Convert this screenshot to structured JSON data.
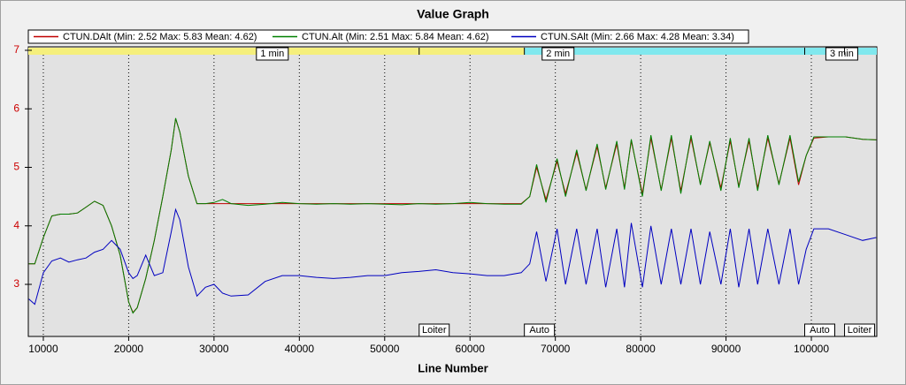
{
  "chart_data": {
    "type": "line",
    "title": "Value Graph",
    "x_label": "Line Number",
    "x": [
      8300,
      9000,
      10000,
      11000,
      12000,
      13000,
      14000,
      15000,
      16000,
      17000,
      18000,
      19000,
      20000,
      20500,
      21000,
      22000,
      23000,
      24000,
      25000,
      25500,
      26000,
      27000,
      28000,
      29000,
      30000,
      31000,
      32000,
      34000,
      36000,
      38000,
      40000,
      42000,
      44000,
      46000,
      48000,
      50000,
      52000,
      54000,
      56000,
      58000,
      60000,
      62000,
      64000,
      66000,
      67000,
      67800,
      68900,
      70200,
      71200,
      72500,
      73600,
      74900,
      75900,
      77200,
      78100,
      78900,
      80200,
      81200,
      82400,
      83600,
      84700,
      85900,
      87000,
      88100,
      89400,
      90500,
      91500,
      92700,
      93700,
      94900,
      96200,
      97500,
      98500,
      99400,
      100300,
      102000,
      104000,
      106000,
      107600
    ],
    "series": [
      {
        "name": "CTUN.DAlt  (Min: 2.52 Max: 5.83 Mean: 4.62)",
        "color": "#c00000",
        "values": [
          3.35,
          3.35,
          3.8,
          4.17,
          4.2,
          4.2,
          4.22,
          4.32,
          4.42,
          4.35,
          4.0,
          3.5,
          2.7,
          2.52,
          2.6,
          3.1,
          3.75,
          4.5,
          5.3,
          5.83,
          5.6,
          4.85,
          4.38,
          4.38,
          4.38,
          4.38,
          4.38,
          4.38,
          4.38,
          4.38,
          4.38,
          4.38,
          4.38,
          4.38,
          4.38,
          4.38,
          4.38,
          4.38,
          4.38,
          4.38,
          4.38,
          4.38,
          4.38,
          4.38,
          4.5,
          5.0,
          4.45,
          5.1,
          4.55,
          5.25,
          4.62,
          5.35,
          4.65,
          5.4,
          4.65,
          5.45,
          4.55,
          5.5,
          4.62,
          5.5,
          4.6,
          5.5,
          4.72,
          5.42,
          4.65,
          5.45,
          4.68,
          5.45,
          4.65,
          5.5,
          4.72,
          5.5,
          4.7,
          5.2,
          5.5,
          5.52,
          5.52,
          5.48,
          5.47
        ]
      },
      {
        "name": "CTUN.Alt  (Min: 2.51 Max: 5.84 Mean: 4.62)",
        "color": "#008000",
        "values": [
          3.35,
          3.35,
          3.8,
          4.17,
          4.2,
          4.2,
          4.22,
          4.32,
          4.42,
          4.35,
          4.0,
          3.5,
          2.7,
          2.51,
          2.6,
          3.1,
          3.75,
          4.5,
          5.3,
          5.84,
          5.6,
          4.85,
          4.38,
          4.38,
          4.4,
          4.45,
          4.38,
          4.35,
          4.37,
          4.4,
          4.38,
          4.37,
          4.38,
          4.37,
          4.38,
          4.37,
          4.36,
          4.38,
          4.37,
          4.38,
          4.4,
          4.38,
          4.37,
          4.37,
          4.5,
          5.05,
          4.4,
          5.15,
          4.5,
          5.3,
          4.6,
          5.4,
          4.62,
          5.45,
          4.62,
          5.48,
          4.5,
          5.55,
          4.6,
          5.55,
          4.55,
          5.55,
          4.7,
          5.45,
          4.6,
          5.5,
          4.65,
          5.5,
          4.6,
          5.55,
          4.7,
          5.55,
          4.75,
          5.2,
          5.52,
          5.52,
          5.52,
          5.48,
          5.47
        ]
      },
      {
        "name": "CTUN.SAlt  (Min: 2.66 Max: 4.28 Mean: 3.34)",
        "color": "#0000c0",
        "values": [
          2.75,
          2.66,
          3.2,
          3.4,
          3.45,
          3.38,
          3.42,
          3.45,
          3.55,
          3.6,
          3.75,
          3.6,
          3.2,
          3.1,
          3.15,
          3.5,
          3.15,
          3.2,
          3.9,
          4.28,
          4.1,
          3.3,
          2.8,
          2.95,
          3.0,
          2.85,
          2.8,
          2.82,
          3.05,
          3.15,
          3.15,
          3.12,
          3.1,
          3.12,
          3.15,
          3.15,
          3.2,
          3.22,
          3.25,
          3.2,
          3.18,
          3.15,
          3.15,
          3.2,
          3.35,
          3.9,
          3.05,
          3.95,
          3.0,
          3.95,
          3.0,
          3.95,
          2.95,
          3.95,
          2.95,
          4.05,
          2.95,
          4.0,
          3.0,
          3.95,
          3.0,
          3.95,
          3.0,
          3.9,
          3.0,
          3.95,
          2.95,
          3.95,
          3.0,
          3.95,
          3.0,
          3.95,
          3.0,
          3.6,
          3.95,
          3.95,
          3.85,
          3.75,
          3.8
        ]
      }
    ],
    "xlim": [
      8240,
      107670
    ],
    "xticks": [
      10000,
      20000,
      30000,
      40000,
      50000,
      60000,
      70000,
      80000,
      90000,
      100000
    ],
    "ylim": [
      2.11,
      7.06
    ],
    "yticks": [
      3,
      4,
      5,
      6,
      7
    ],
    "grid": true,
    "bands": [
      {
        "from": 8240,
        "to": 66370,
        "color": "#f5ef7c"
      },
      {
        "from": 66370,
        "to": 107670,
        "color": "#80e8ee"
      }
    ],
    "time_marks": [
      {
        "x": 34970,
        "label": "1 min"
      },
      {
        "x": 68450,
        "label": "2 min"
      },
      {
        "x": 101700,
        "label": "3 min"
      }
    ],
    "events": [
      {
        "x": 54040,
        "label": "Loiter"
      },
      {
        "x": 66370,
        "label": "Auto"
      },
      {
        "x": 99220,
        "label": "Auto"
      },
      {
        "x": 103890,
        "label": "Loiter"
      }
    ]
  }
}
